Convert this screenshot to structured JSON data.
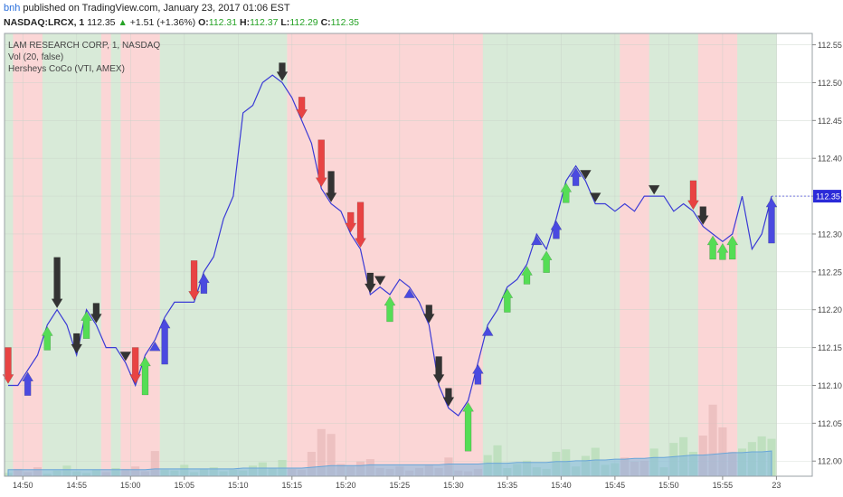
{
  "header": {
    "author": "bnh",
    "published_text": "published on TradingView.com, January 23, 2017 01:06 EST",
    "symbol": "NASDAQ:LRCX, 1",
    "last": "112.35",
    "change_arrow": "▲",
    "change": "+1.51 (+1.36%)",
    "o_label": "O:",
    "o_value": "112.31",
    "h_label": "H:",
    "h_value": "112.37",
    "l_label": "L:",
    "l_value": "112.29",
    "c_label": "C:",
    "c_value": "112.35"
  },
  "legend": {
    "title": "LAM RESEARCH CORP, 1, NASDAQ",
    "vol": "Vol (20, false)",
    "indicator": "Hersheys CoCo (VTI, AMEX)"
  },
  "chart_data": {
    "type": "line",
    "xlabel": "",
    "ylabel": "",
    "x_ticks": [
      "14:50",
      "14:55",
      "15:00",
      "15:05",
      "15:10",
      "15:15",
      "15:20",
      "15:25",
      "15:30",
      "15:35",
      "15:40",
      "15:45",
      "15:50",
      "15:55",
      "23"
    ],
    "y_ticks": [
      "112.00",
      "112.05",
      "112.10",
      "112.15",
      "112.20",
      "112.25",
      "112.30",
      "112.35",
      "112.40",
      "112.45",
      "112.50",
      "112.55"
    ],
    "ylim": [
      111.98,
      112.565
    ],
    "last_price_label": "112.35",
    "colors": {
      "line": "#3a3ad6",
      "bg_up": "#d8ead8",
      "bg_down": "#fbd6d6",
      "arrow_up_blue": "#4a4ae0",
      "arrow_up_green": "#55dd55",
      "arrow_down_red": "#e84343",
      "arrow_down_dark": "#333333",
      "price_tag": "#2b2bd8"
    },
    "x": [
      0,
      1,
      2,
      3,
      4,
      5,
      6,
      7,
      8,
      9,
      10,
      11,
      12,
      13,
      14,
      15,
      16,
      17,
      18,
      19,
      20,
      21,
      22,
      23,
      24,
      25,
      26,
      27,
      28,
      29,
      30,
      31,
      32,
      33,
      34,
      35,
      36,
      37,
      38,
      39,
      40,
      41,
      42,
      43,
      44,
      45,
      46,
      47,
      48,
      49,
      50,
      51,
      52,
      53,
      54,
      55,
      56,
      57,
      58,
      59,
      60,
      61,
      62,
      63,
      64,
      65,
      66,
      67,
      68,
      69,
      70,
      71,
      72,
      73,
      74,
      75,
      76,
      77,
      78
    ],
    "price": [
      112.1,
      112.1,
      112.12,
      112.14,
      112.18,
      112.2,
      112.18,
      112.14,
      112.2,
      112.18,
      112.15,
      112.15,
      112.13,
      112.1,
      112.14,
      112.16,
      112.19,
      112.21,
      112.21,
      112.21,
      112.25,
      112.27,
      112.32,
      112.35,
      112.46,
      112.47,
      112.5,
      112.51,
      112.5,
      112.48,
      112.45,
      112.42,
      112.36,
      112.34,
      112.33,
      112.3,
      112.28,
      112.22,
      112.23,
      112.22,
      112.24,
      112.23,
      112.21,
      112.18,
      112.1,
      112.07,
      112.06,
      112.08,
      112.13,
      112.18,
      112.2,
      112.23,
      112.24,
      112.26,
      112.3,
      112.28,
      112.32,
      112.37,
      112.39,
      112.37,
      112.34,
      112.34,
      112.33,
      112.34,
      112.33,
      112.35,
      112.35,
      112.35,
      112.33,
      112.34,
      112.33,
      112.31,
      112.3,
      112.29,
      112.3,
      112.35,
      112.28,
      112.3,
      112.35
    ],
    "regime": [
      "up",
      "down",
      "down",
      "down",
      "up",
      "up",
      "up",
      "up",
      "up",
      "up",
      "down",
      "up",
      "down",
      "down",
      "down",
      "down",
      "up",
      "up",
      "up",
      "up",
      "up",
      "up",
      "up",
      "up",
      "up",
      "up",
      "up",
      "up",
      "up",
      "down",
      "down",
      "down",
      "down",
      "down",
      "down",
      "down",
      "down",
      "down",
      "down",
      "down",
      "down",
      "down",
      "down",
      "down",
      "down",
      "down",
      "down",
      "down",
      "down",
      "up",
      "up",
      "up",
      "up",
      "up",
      "up",
      "up",
      "up",
      "up",
      "up",
      "up",
      "up",
      "up",
      "up",
      "down",
      "down",
      "down",
      "up",
      "up",
      "up",
      "up",
      "up",
      "down",
      "down",
      "down",
      "down",
      "up",
      "up",
      "up",
      "up"
    ],
    "volume": [
      0.4,
      0.9,
      0.5,
      1.1,
      0.3,
      0.7,
      1.3,
      0.6,
      0.4,
      0.8,
      0.5,
      1.0,
      0.9,
      1.2,
      0.6,
      3.1,
      0.8,
      0.7,
      1.4,
      0.5,
      0.9,
      1.1,
      0.6,
      0.8,
      0.7,
      1.3,
      1.7,
      1.0,
      2.0,
      0.9,
      0.8,
      3.0,
      5.8,
      5.2,
      1.5,
      1.2,
      1.8,
      2.1,
      1.0,
      0.9,
      1.2,
      0.7,
      1.0,
      1.4,
      1.0,
      2.3,
      0.7,
      0.6,
      0.9,
      2.6,
      3.8,
      1.0,
      1.5,
      1.9,
      1.1,
      0.9,
      3.0,
      3.3,
      1.2,
      2.5,
      3.5,
      1.4,
      1.6,
      2.3,
      1.8,
      1.9,
      3.4,
      1.1,
      4.1,
      4.8,
      3.0,
      5.0,
      8.8,
      6.0,
      3.0,
      3.4,
      4.2,
      4.9,
      4.6
    ],
    "volume_ma": [
      0.8,
      0.8,
      0.8,
      0.8,
      0.8,
      0.8,
      0.8,
      0.8,
      0.8,
      0.8,
      0.8,
      0.8,
      0.8,
      0.8,
      0.8,
      0.9,
      0.9,
      0.9,
      0.9,
      0.9,
      0.9,
      0.9,
      0.9,
      0.9,
      1.0,
      1.0,
      1.0,
      1.0,
      1.0,
      1.0,
      1.0,
      1.1,
      1.2,
      1.3,
      1.3,
      1.3,
      1.3,
      1.4,
      1.4,
      1.4,
      1.4,
      1.4,
      1.4,
      1.4,
      1.4,
      1.5,
      1.5,
      1.5,
      1.5,
      1.6,
      1.6,
      1.6,
      1.7,
      1.7,
      1.7,
      1.7,
      1.8,
      1.8,
      1.9,
      1.9,
      2.0,
      2.0,
      2.1,
      2.1,
      2.2,
      2.2,
      2.3,
      2.3,
      2.4,
      2.5,
      2.6,
      2.6,
      2.7,
      2.8,
      2.9,
      2.9,
      3.0,
      3.0,
      3.1
    ],
    "signals": [
      {
        "i": 0,
        "dir": "down",
        "color": "red",
        "len": 30
      },
      {
        "i": 2,
        "dir": "up",
        "color": "blue",
        "len": 16
      },
      {
        "i": 4,
        "dir": "up",
        "color": "green",
        "len": 16
      },
      {
        "i": 5,
        "dir": "down",
        "color": "dark",
        "len": 46
      },
      {
        "i": 7,
        "dir": "down",
        "color": "dark",
        "len": 12
      },
      {
        "i": 8,
        "dir": "up",
        "color": "green",
        "len": 20
      },
      {
        "i": 9,
        "dir": "down",
        "color": "dark",
        "len": 12
      },
      {
        "i": 12,
        "dir": "down",
        "color": "dark",
        "len": 0
      },
      {
        "i": 13,
        "dir": "down",
        "color": "red",
        "len": 30
      },
      {
        "i": 14,
        "dir": "up",
        "color": "green",
        "len": 32
      },
      {
        "i": 15,
        "dir": "up",
        "color": "blue",
        "len": 0
      },
      {
        "i": 16,
        "dir": "up",
        "color": "blue",
        "len": 40
      },
      {
        "i": 19,
        "dir": "down",
        "color": "red",
        "len": 34
      },
      {
        "i": 20,
        "dir": "up",
        "color": "blue",
        "len": 12
      },
      {
        "i": 28,
        "dir": "down",
        "color": "dark",
        "len": 10
      },
      {
        "i": 30,
        "dir": "down",
        "color": "red",
        "len": 14
      },
      {
        "i": 32,
        "dir": "down",
        "color": "red",
        "len": 42
      },
      {
        "i": 33,
        "dir": "down",
        "color": "dark",
        "len": 24
      },
      {
        "i": 35,
        "dir": "down",
        "color": "red",
        "len": 12
      },
      {
        "i": 36,
        "dir": "down",
        "color": "red",
        "len": 40
      },
      {
        "i": 37,
        "dir": "down",
        "color": "dark",
        "len": 12
      },
      {
        "i": 38,
        "dir": "down",
        "color": "dark",
        "len": 0
      },
      {
        "i": 39,
        "dir": "up",
        "color": "green",
        "len": 18
      },
      {
        "i": 41,
        "dir": "up",
        "color": "blue",
        "len": 0
      },
      {
        "i": 43,
        "dir": "down",
        "color": "dark",
        "len": 10
      },
      {
        "i": 44,
        "dir": "down",
        "color": "dark",
        "len": 20
      },
      {
        "i": 45,
        "dir": "down",
        "color": "dark",
        "len": 10
      },
      {
        "i": 47,
        "dir": "up",
        "color": "green",
        "len": 44
      },
      {
        "i": 48,
        "dir": "up",
        "color": "blue",
        "len": 12
      },
      {
        "i": 49,
        "dir": "up",
        "color": "blue",
        "len": 0
      },
      {
        "i": 51,
        "dir": "up",
        "color": "green",
        "len": 16
      },
      {
        "i": 53,
        "dir": "up",
        "color": "green",
        "len": 10
      },
      {
        "i": 54,
        "dir": "up",
        "color": "blue",
        "len": 0
      },
      {
        "i": 55,
        "dir": "up",
        "color": "green",
        "len": 14
      },
      {
        "i": 56,
        "dir": "up",
        "color": "blue",
        "len": 10
      },
      {
        "i": 57,
        "dir": "up",
        "color": "green",
        "len": 12
      },
      {
        "i": 58,
        "dir": "up",
        "color": "blue",
        "len": 10
      },
      {
        "i": 59,
        "dir": "down",
        "color": "dark",
        "len": 0
      },
      {
        "i": 60,
        "dir": "down",
        "color": "dark",
        "len": 0
      },
      {
        "i": 66,
        "dir": "down",
        "color": "dark",
        "len": 0
      },
      {
        "i": 70,
        "dir": "down",
        "color": "red",
        "len": 22
      },
      {
        "i": 71,
        "dir": "down",
        "color": "dark",
        "len": 10
      },
      {
        "i": 72,
        "dir": "up",
        "color": "green",
        "len": 16
      },
      {
        "i": 73,
        "dir": "up",
        "color": "green",
        "len": 8
      },
      {
        "i": 74,
        "dir": "up",
        "color": "green",
        "len": 16
      },
      {
        "i": 78,
        "dir": "up",
        "color": "blue",
        "len": 40
      }
    ]
  }
}
